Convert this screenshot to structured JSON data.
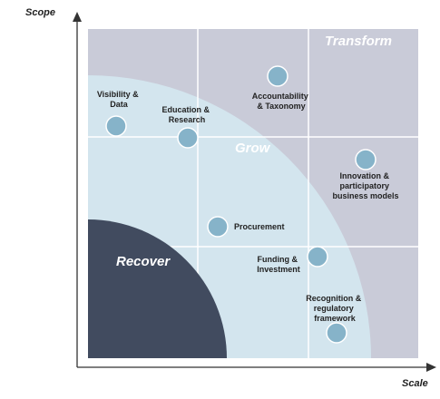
{
  "axes": {
    "y_label": "Scope",
    "x_label": "Scale"
  },
  "zones": {
    "transform": "Transform",
    "grow": "Grow",
    "recover": "Recover"
  },
  "colors": {
    "transform_fill": "#c9cbd8",
    "grow_fill": "#d3e5ee",
    "recover_fill": "#414b5f",
    "node_fill": "#86b3c9",
    "grid_line": "#ffffff",
    "axis": "#333333"
  },
  "items": [
    {
      "id": "visibility-data",
      "lines": [
        "Visibility &",
        "Data"
      ]
    },
    {
      "id": "education-research",
      "lines": [
        "Education &",
        "Research"
      ]
    },
    {
      "id": "accountability-taxonomy",
      "lines": [
        "Accountability",
        "& Taxonomy"
      ]
    },
    {
      "id": "innovation-models",
      "lines": [
        "Innovation &",
        "participatory",
        "business models"
      ]
    },
    {
      "id": "procurement",
      "lines": [
        "Procurement"
      ]
    },
    {
      "id": "funding-investment",
      "lines": [
        "Funding &",
        "Investment"
      ]
    },
    {
      "id": "recognition-framework",
      "lines": [
        "Recognition &",
        "regulatory",
        "framework"
      ]
    }
  ]
}
